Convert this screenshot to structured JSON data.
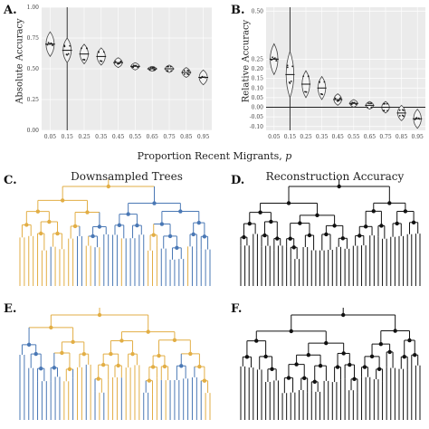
{
  "figure": {
    "panel_letters": [
      "A.",
      "B.",
      "C.",
      "D.",
      "E.",
      "F."
    ],
    "shared_xlabel_prefix": "Proportion Recent Migrants, ",
    "shared_xlabel_var": "p",
    "panel_c_title": "Downsampled Trees",
    "panel_d_title": "Reconstruction Accuracy",
    "side_label_c": "",
    "side_label_e": ""
  },
  "colors": {
    "panel_bg": "#ebebeb",
    "grid": "#ffffff",
    "violin": "#444444",
    "tree_gold": "#e2ae45",
    "tree_blue": "#4a78b5",
    "tree_black": "#111111"
  },
  "chart_data": [
    {
      "type": "violin",
      "panel": "A",
      "ylabel": "Absolute Accuracy",
      "xlabel": "Proportion Recent Migrants, p",
      "categories": [
        "0.05",
        "0.15",
        "0.25",
        "0.35",
        "0.45",
        "0.55",
        "0.65",
        "0.75",
        "0.85",
        "0.95"
      ],
      "medians": [
        0.7,
        0.65,
        0.62,
        0.6,
        0.55,
        0.52,
        0.5,
        0.5,
        0.47,
        0.43
      ],
      "spread": [
        0.1,
        0.1,
        0.08,
        0.07,
        0.04,
        0.03,
        0.02,
        0.03,
        0.04,
        0.06
      ],
      "yticks": [
        "0.00",
        "0.25",
        "0.50",
        "0.75",
        "1.00"
      ],
      "ylim": [
        0,
        1
      ],
      "vline_at": "0.15",
      "hline_at": null
    },
    {
      "type": "violin",
      "panel": "B",
      "ylabel": "Relative Accuracy",
      "xlabel": "Proportion Recent Migrants, p",
      "categories": [
        "0.05",
        "0.15",
        "0.25",
        "0.35",
        "0.45",
        "0.55",
        "0.65",
        "0.75",
        "0.85",
        "0.95"
      ],
      "medians": [
        0.25,
        0.17,
        0.12,
        0.1,
        0.04,
        0.02,
        0.01,
        0.0,
        -0.03,
        -0.06
      ],
      "spread": [
        0.08,
        0.12,
        0.07,
        0.06,
        0.03,
        0.02,
        0.02,
        0.03,
        0.04,
        0.05
      ],
      "yticks": [
        "-0.10",
        "-0.05",
        "0.00",
        "0.05",
        "0.10",
        "0.15",
        "0.20",
        "0.25",
        "0.50"
      ],
      "ylim": [
        -0.12,
        0.52
      ],
      "vline_at": "0.15",
      "hline_at": 0
    }
  ]
}
